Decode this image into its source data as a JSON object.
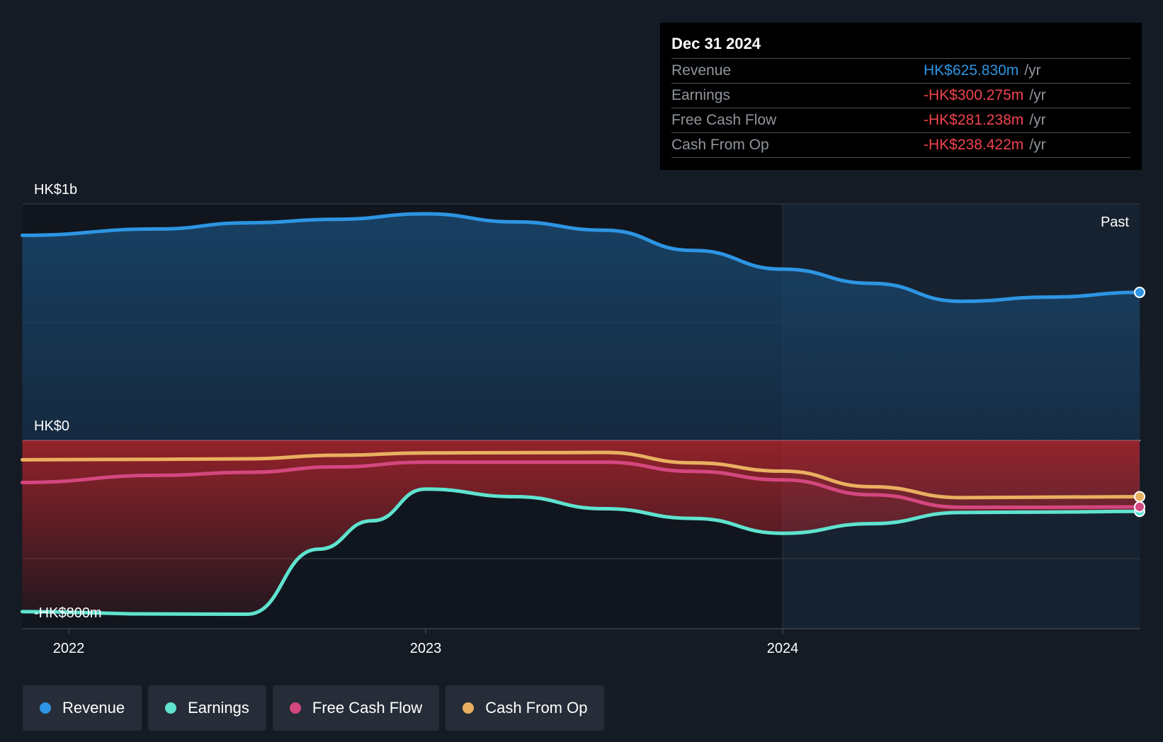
{
  "tooltip": {
    "date": "Dec 31 2024",
    "rows": [
      {
        "label": "Revenue",
        "value": "HK$625.830m",
        "unit": "/yr",
        "color": "#2d95e3"
      },
      {
        "label": "Earnings",
        "value": "-HK$300.275m",
        "unit": "/yr",
        "color": "#f0444f"
      },
      {
        "label": "Free Cash Flow",
        "value": "-HK$281.238m",
        "unit": "/yr",
        "color": "#f0444f"
      },
      {
        "label": "Cash From Op",
        "value": "-HK$238.422m",
        "unit": "/yr",
        "color": "#f0444f"
      }
    ]
  },
  "chart_data": {
    "type": "line",
    "y_tick_labels": [
      "HK$1b",
      "HK$0",
      "-HK$800m"
    ],
    "ylim": [
      -800,
      1000
    ],
    "y_unit": "HK$m",
    "x_tick_labels": [
      "2022",
      "2023",
      "2024"
    ],
    "xlim": [
      2021.87,
      2025.0
    ],
    "past_label": "Past",
    "grid": true,
    "legend_position": "bottom-left",
    "series": [
      {
        "name": "Revenue",
        "color": "#2d95e3",
        "x": [
          2021.87,
          2022.25,
          2022.5,
          2022.75,
          2023.0,
          2023.25,
          2023.5,
          2023.75,
          2024.0,
          2024.25,
          2024.5,
          2024.75,
          2025.0
        ],
        "y": [
          867,
          894,
          920,
          935,
          958,
          924,
          889,
          803,
          724,
          664,
          588,
          606,
          626
        ]
      },
      {
        "name": "Earnings",
        "color": "#5ee3cf",
        "x": [
          2021.87,
          2022.25,
          2022.5,
          2022.7,
          2022.85,
          2023.0,
          2023.25,
          2023.5,
          2023.75,
          2024.0,
          2024.25,
          2024.5,
          2024.75,
          2025.0
        ],
        "y": [
          -724,
          -734,
          -735,
          -460,
          -340,
          -206,
          -238,
          -289,
          -330,
          -393,
          -352,
          -305,
          -303,
          -300
        ]
      },
      {
        "name": "Free Cash Flow",
        "color": "#d4477f",
        "x": [
          2021.87,
          2022.25,
          2022.5,
          2022.75,
          2023.0,
          2023.25,
          2023.5,
          2023.75,
          2024.0,
          2024.25,
          2024.5,
          2024.75,
          2025.0
        ],
        "y": [
          -178,
          -148,
          -135,
          -112,
          -92,
          -92,
          -92,
          -131,
          -167,
          -230,
          -283,
          -283,
          -281
        ]
      },
      {
        "name": "Cash From Op",
        "color": "#e9b060",
        "x": [
          2021.87,
          2022.25,
          2022.5,
          2022.75,
          2023.0,
          2023.25,
          2023.5,
          2023.75,
          2024.0,
          2024.25,
          2024.5,
          2024.75,
          2025.0
        ],
        "y": [
          -82,
          -80,
          -78,
          -63,
          -53,
          -52,
          -51,
          -95,
          -130,
          -196,
          -242,
          -240,
          -238
        ]
      }
    ]
  },
  "legend": [
    {
      "label": "Revenue",
      "color": "#2d95e3"
    },
    {
      "label": "Earnings",
      "color": "#5ee3cf"
    },
    {
      "label": "Free Cash Flow",
      "color": "#d4477f"
    },
    {
      "label": "Cash From Op",
      "color": "#e9b060"
    }
  ]
}
